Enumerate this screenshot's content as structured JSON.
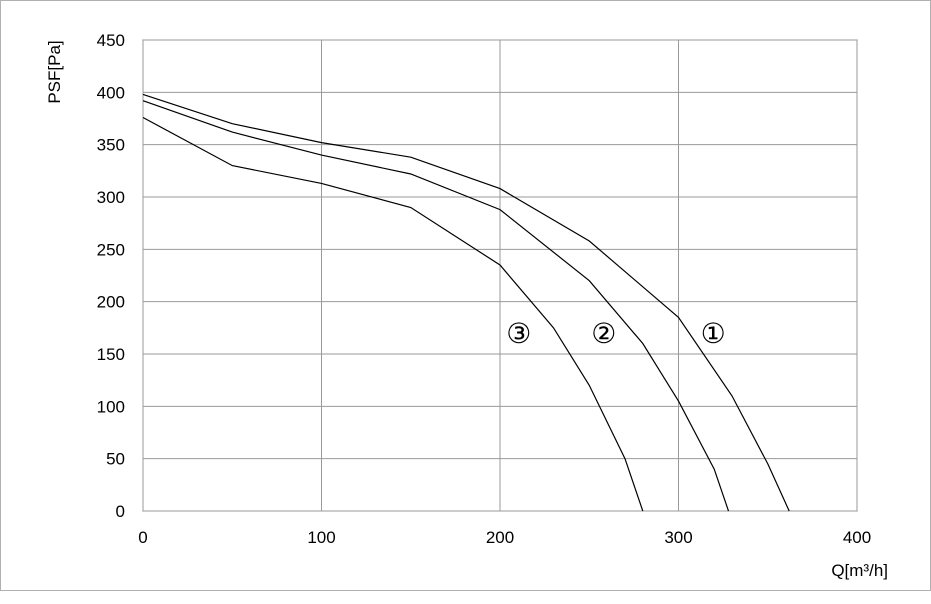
{
  "chart_data": {
    "type": "line",
    "xlabel": "Q[m³/h]",
    "ylabel": "PSF[Pa]",
    "xlim": [
      0,
      400
    ],
    "xticks": [
      0,
      100,
      200,
      300,
      400
    ],
    "ylim": [
      0,
      450
    ],
    "yticks": [
      0,
      50,
      100,
      150,
      200,
      250,
      300,
      350,
      400,
      450
    ],
    "grid": true,
    "series": [
      {
        "name": "①",
        "color": "#000000",
        "x": [
          0,
          50,
          100,
          150,
          200,
          250,
          300,
          330,
          350,
          362
        ],
        "values": [
          398,
          370,
          352,
          338,
          308,
          258,
          185,
          110,
          45,
          0
        ]
      },
      {
        "name": "②",
        "color": "#000000",
        "x": [
          0,
          50,
          100,
          150,
          200,
          250,
          280,
          300,
          320,
          328
        ],
        "values": [
          392,
          362,
          340,
          322,
          288,
          220,
          160,
          105,
          40,
          0
        ]
      },
      {
        "name": "③",
        "color": "#000000",
        "x": [
          0,
          50,
          100,
          150,
          200,
          230,
          250,
          270,
          280
        ],
        "values": [
          376,
          330,
          313,
          290,
          235,
          175,
          120,
          50,
          0
        ]
      }
    ]
  }
}
